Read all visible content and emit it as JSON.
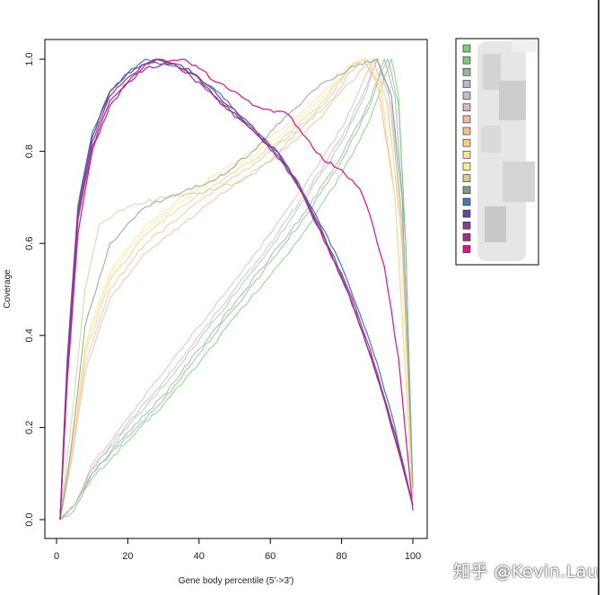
{
  "chart_data": {
    "type": "line",
    "title": "",
    "xlabel": "Gene body percentile (5'->3')",
    "ylabel": "Coverage",
    "xlim": [
      0,
      100
    ],
    "ylim": [
      0,
      1
    ],
    "x_ticks": [
      "0",
      "20",
      "40",
      "60",
      "80",
      "100"
    ],
    "y_ticks": [
      "0.0",
      "0.2",
      "0.4",
      "0.6",
      "0.8",
      "1.0"
    ],
    "grid": false,
    "legend": "right",
    "series": [
      {
        "color": "#7fc97f",
        "values": [
          [
            1,
            0
          ],
          [
            5,
            0.03
          ],
          [
            10,
            0.09
          ],
          [
            20,
            0.17
          ],
          [
            30,
            0.25
          ],
          [
            40,
            0.34
          ],
          [
            50,
            0.44
          ],
          [
            60,
            0.53
          ],
          [
            70,
            0.63
          ],
          [
            80,
            0.75
          ],
          [
            88,
            0.87
          ],
          [
            92,
            0.96
          ],
          [
            94,
            1.0
          ],
          [
            96,
            0.92
          ],
          [
            98,
            0.6
          ],
          [
            100,
            0.05
          ]
        ]
      },
      {
        "color": "#86c28a",
        "values": [
          [
            1,
            0
          ],
          [
            5,
            0.03
          ],
          [
            10,
            0.1
          ],
          [
            20,
            0.18
          ],
          [
            30,
            0.26
          ],
          [
            40,
            0.36
          ],
          [
            50,
            0.46
          ],
          [
            60,
            0.56
          ],
          [
            70,
            0.66
          ],
          [
            80,
            0.78
          ],
          [
            88,
            0.9
          ],
          [
            91,
            0.97
          ],
          [
            93,
            1.0
          ],
          [
            96,
            0.9
          ],
          [
            98,
            0.6
          ],
          [
            100,
            0.05
          ]
        ]
      },
      {
        "color": "#98b49a",
        "values": [
          [
            1,
            0
          ],
          [
            5,
            0.02
          ],
          [
            10,
            0.1
          ],
          [
            20,
            0.19
          ],
          [
            30,
            0.27
          ],
          [
            40,
            0.37
          ],
          [
            50,
            0.47
          ],
          [
            60,
            0.57
          ],
          [
            70,
            0.67
          ],
          [
            80,
            0.79
          ],
          [
            88,
            0.91
          ],
          [
            92,
            1.0
          ],
          [
            95,
            0.92
          ],
          [
            98,
            0.6
          ],
          [
            100,
            0.08
          ]
        ]
      },
      {
        "color": "#b8b8cc",
        "values": [
          [
            1,
            0
          ],
          [
            5,
            0.03
          ],
          [
            10,
            0.11
          ],
          [
            20,
            0.2
          ],
          [
            30,
            0.29
          ],
          [
            40,
            0.39
          ],
          [
            50,
            0.49
          ],
          [
            60,
            0.59
          ],
          [
            70,
            0.7
          ],
          [
            80,
            0.82
          ],
          [
            87,
            0.93
          ],
          [
            90,
            1.0
          ],
          [
            94,
            0.92
          ],
          [
            97,
            0.65
          ],
          [
            100,
            0.05
          ]
        ]
      },
      {
        "color": "#ccb8cc",
        "values": [
          [
            1,
            0
          ],
          [
            5,
            0.03
          ],
          [
            10,
            0.11
          ],
          [
            20,
            0.21
          ],
          [
            30,
            0.3
          ],
          [
            40,
            0.4
          ],
          [
            50,
            0.5
          ],
          [
            60,
            0.6
          ],
          [
            70,
            0.71
          ],
          [
            80,
            0.83
          ],
          [
            87,
            0.94
          ],
          [
            90,
            1.0
          ],
          [
            94,
            0.9
          ],
          [
            97,
            0.62
          ],
          [
            100,
            0.05
          ]
        ]
      },
      {
        "color": "#d8b8c0",
        "values": [
          [
            1,
            0
          ],
          [
            5,
            0.03
          ],
          [
            10,
            0.12
          ],
          [
            20,
            0.22
          ],
          [
            30,
            0.32
          ],
          [
            40,
            0.42
          ],
          [
            50,
            0.52
          ],
          [
            60,
            0.62
          ],
          [
            70,
            0.73
          ],
          [
            80,
            0.85
          ],
          [
            86,
            0.95
          ],
          [
            89,
            1.0
          ],
          [
            93,
            0.9
          ],
          [
            97,
            0.6
          ],
          [
            100,
            0.05
          ]
        ]
      },
      {
        "color": "#ecbaa8",
        "values": [
          [
            1,
            0
          ],
          [
            4,
            0.12
          ],
          [
            8,
            0.32
          ],
          [
            15,
            0.48
          ],
          [
            25,
            0.58
          ],
          [
            35,
            0.64
          ],
          [
            45,
            0.7
          ],
          [
            55,
            0.75
          ],
          [
            65,
            0.81
          ],
          [
            75,
            0.88
          ],
          [
            82,
            0.97
          ],
          [
            86,
            1.0
          ],
          [
            90,
            0.95
          ],
          [
            95,
            0.7
          ],
          [
            100,
            0.05
          ]
        ]
      },
      {
        "color": "#f1c295",
        "values": [
          [
            1,
            0
          ],
          [
            4,
            0.13
          ],
          [
            8,
            0.34
          ],
          [
            15,
            0.5
          ],
          [
            25,
            0.6
          ],
          [
            35,
            0.66
          ],
          [
            45,
            0.72
          ],
          [
            55,
            0.77
          ],
          [
            65,
            0.83
          ],
          [
            75,
            0.9
          ],
          [
            82,
            0.98
          ],
          [
            86,
            1.0
          ],
          [
            90,
            0.95
          ],
          [
            95,
            0.7
          ],
          [
            100,
            0.05
          ]
        ]
      },
      {
        "color": "#f8cc8a",
        "values": [
          [
            1,
            0
          ],
          [
            4,
            0.14
          ],
          [
            8,
            0.36
          ],
          [
            15,
            0.52
          ],
          [
            25,
            0.62
          ],
          [
            35,
            0.68
          ],
          [
            45,
            0.73
          ],
          [
            55,
            0.78
          ],
          [
            65,
            0.84
          ],
          [
            75,
            0.91
          ],
          [
            83,
            0.99
          ],
          [
            87,
            1.0
          ],
          [
            91,
            0.94
          ],
          [
            95,
            0.7
          ],
          [
            100,
            0.05
          ]
        ]
      },
      {
        "color": "#fde29c",
        "values": [
          [
            1,
            0
          ],
          [
            4,
            0.15
          ],
          [
            8,
            0.38
          ],
          [
            15,
            0.54
          ],
          [
            25,
            0.64
          ],
          [
            35,
            0.7
          ],
          [
            45,
            0.75
          ],
          [
            55,
            0.8
          ],
          [
            65,
            0.86
          ],
          [
            75,
            0.93
          ],
          [
            83,
            0.99
          ],
          [
            87,
            1.0
          ],
          [
            91,
            0.94
          ],
          [
            95,
            0.7
          ],
          [
            100,
            0.06
          ]
        ]
      },
      {
        "color": "#f7ec9a",
        "values": [
          [
            1,
            0
          ],
          [
            4,
            0.14
          ],
          [
            8,
            0.37
          ],
          [
            15,
            0.53
          ],
          [
            25,
            0.63
          ],
          [
            35,
            0.69
          ],
          [
            45,
            0.74
          ],
          [
            55,
            0.79
          ],
          [
            65,
            0.85
          ],
          [
            75,
            0.92
          ],
          [
            83,
            0.99
          ],
          [
            88,
            1.0
          ],
          [
            92,
            0.93
          ],
          [
            96,
            0.7
          ],
          [
            100,
            0.06
          ]
        ]
      },
      {
        "color": "#cfcf9a",
        "values": [
          [
            1,
            0
          ],
          [
            4,
            0.2
          ],
          [
            8,
            0.5
          ],
          [
            12,
            0.64
          ],
          [
            20,
            0.68
          ],
          [
            30,
            0.7
          ],
          [
            40,
            0.71
          ],
          [
            50,
            0.73
          ],
          [
            60,
            0.78
          ],
          [
            70,
            0.86
          ],
          [
            80,
            0.93
          ],
          [
            86,
            0.98
          ],
          [
            90,
            1.0
          ],
          [
            93,
            0.94
          ],
          [
            97,
            0.65
          ],
          [
            100,
            0.05
          ]
        ]
      },
      {
        "color": "#7f9a8e",
        "values": [
          [
            1,
            0
          ],
          [
            4,
            0.15
          ],
          [
            8,
            0.42
          ],
          [
            15,
            0.6
          ],
          [
            25,
            0.68
          ],
          [
            35,
            0.71
          ],
          [
            45,
            0.74
          ],
          [
            55,
            0.8
          ],
          [
            65,
            0.88
          ],
          [
            75,
            0.95
          ],
          [
            85,
            0.99
          ],
          [
            90,
            1.0
          ],
          [
            94,
            0.92
          ],
          [
            97,
            0.7
          ],
          [
            100,
            0.07
          ]
        ]
      },
      {
        "color": "#4a78b4",
        "values": [
          [
            1,
            0
          ],
          [
            3,
            0.35
          ],
          [
            6,
            0.68
          ],
          [
            10,
            0.84
          ],
          [
            15,
            0.93
          ],
          [
            20,
            0.97
          ],
          [
            25,
            1.0
          ],
          [
            30,
            0.99
          ],
          [
            35,
            0.98
          ],
          [
            40,
            0.96
          ],
          [
            45,
            0.93
          ],
          [
            50,
            0.89
          ],
          [
            55,
            0.85
          ],
          [
            60,
            0.81
          ],
          [
            65,
            0.76
          ],
          [
            70,
            0.7
          ],
          [
            75,
            0.63
          ],
          [
            80,
            0.55
          ],
          [
            85,
            0.45
          ],
          [
            90,
            0.34
          ],
          [
            95,
            0.2
          ],
          [
            100,
            0.03
          ]
        ]
      },
      {
        "color": "#5a4e9a",
        "values": [
          [
            1,
            0
          ],
          [
            3,
            0.33
          ],
          [
            6,
            0.67
          ],
          [
            10,
            0.83
          ],
          [
            15,
            0.93
          ],
          [
            20,
            0.97
          ],
          [
            25,
            0.99
          ],
          [
            28,
            1.0
          ],
          [
            32,
            0.99
          ],
          [
            37,
            0.98
          ],
          [
            42,
            0.94
          ],
          [
            47,
            0.9
          ],
          [
            52,
            0.87
          ],
          [
            57,
            0.83
          ],
          [
            62,
            0.8
          ],
          [
            67,
            0.74
          ],
          [
            72,
            0.66
          ],
          [
            77,
            0.58
          ],
          [
            82,
            0.49
          ],
          [
            87,
            0.38
          ],
          [
            92,
            0.26
          ],
          [
            96,
            0.15
          ],
          [
            100,
            0.03
          ]
        ]
      },
      {
        "color": "#8a3f90",
        "values": [
          [
            1,
            0
          ],
          [
            3,
            0.33
          ],
          [
            6,
            0.66
          ],
          [
            10,
            0.82
          ],
          [
            15,
            0.92
          ],
          [
            20,
            0.96
          ],
          [
            25,
            0.99
          ],
          [
            29,
            1.0
          ],
          [
            33,
            0.99
          ],
          [
            38,
            0.97
          ],
          [
            43,
            0.94
          ],
          [
            48,
            0.9
          ],
          [
            53,
            0.87
          ],
          [
            58,
            0.83
          ],
          [
            63,
            0.79
          ],
          [
            68,
            0.73
          ],
          [
            73,
            0.65
          ],
          [
            78,
            0.57
          ],
          [
            83,
            0.48
          ],
          [
            88,
            0.37
          ],
          [
            93,
            0.24
          ],
          [
            97,
            0.13
          ],
          [
            100,
            0.03
          ]
        ]
      },
      {
        "color": "#a42a8c",
        "values": [
          [
            1,
            0
          ],
          [
            3,
            0.32
          ],
          [
            6,
            0.65
          ],
          [
            10,
            0.81
          ],
          [
            15,
            0.91
          ],
          [
            20,
            0.95
          ],
          [
            25,
            0.99
          ],
          [
            29,
            1.0
          ],
          [
            33,
            0.99
          ],
          [
            38,
            0.96
          ],
          [
            43,
            0.93
          ],
          [
            48,
            0.89
          ],
          [
            53,
            0.86
          ],
          [
            58,
            0.82
          ],
          [
            63,
            0.78
          ],
          [
            68,
            0.72
          ],
          [
            73,
            0.64
          ],
          [
            78,
            0.56
          ],
          [
            83,
            0.47
          ],
          [
            88,
            0.36
          ],
          [
            93,
            0.23
          ],
          [
            97,
            0.12
          ],
          [
            100,
            0.03
          ]
        ]
      },
      {
        "color": "#d2168f",
        "values": [
          [
            1,
            0
          ],
          [
            3,
            0.3
          ],
          [
            6,
            0.62
          ],
          [
            10,
            0.8
          ],
          [
            15,
            0.9
          ],
          [
            20,
            0.95
          ],
          [
            25,
            0.98
          ],
          [
            30,
            0.99
          ],
          [
            35,
            1.0
          ],
          [
            40,
            0.98
          ],
          [
            45,
            0.95
          ],
          [
            50,
            0.93
          ],
          [
            55,
            0.9
          ],
          [
            60,
            0.89
          ],
          [
            65,
            0.88
          ],
          [
            70,
            0.83
          ],
          [
            75,
            0.78
          ],
          [
            80,
            0.76
          ],
          [
            85,
            0.72
          ],
          [
            88,
            0.66
          ],
          [
            92,
            0.55
          ],
          [
            96,
            0.35
          ],
          [
            100,
            0.02
          ]
        ]
      }
    ]
  },
  "watermark": "知乎 @Kevin.Lau"
}
